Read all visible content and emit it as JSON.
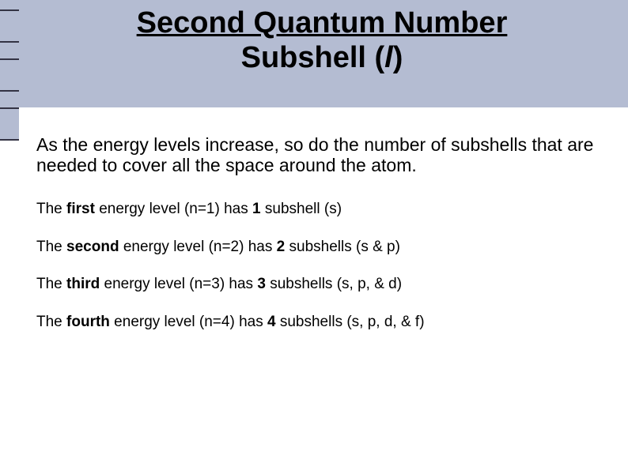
{
  "colors": {
    "header_bg": "#b4bcd2",
    "tick_border": "#333344",
    "body_bg": "#ffffff",
    "text": "#000000"
  },
  "title": {
    "line1": "Second Quantum Number",
    "line2_pre": "Subshell (",
    "line2_italic": "l",
    "line2_post": ")"
  },
  "intro": "As the energy levels increase, so do the number of subshells that are needed to cover all the space around the atom.",
  "levels": [
    {
      "pre": "The ",
      "ord": "first",
      "mid1": " energy level (n=1) has ",
      "count": "1",
      "mid2": " subshell (s)"
    },
    {
      "pre": "The ",
      "ord": "second",
      "mid1": " energy level (n=2) has ",
      "count": "2",
      "mid2": " subshells (s & p)"
    },
    {
      "pre": "The ",
      "ord": "third",
      "mid1": " energy level (n=3) has ",
      "count": "3",
      "mid2": " subshells (s, p, & d)"
    },
    {
      "pre": "The ",
      "ord": "fourth",
      "mid1": " energy level (n=4) has ",
      "count": "4",
      "mid2": " subshells (s, p, d, & f)"
    }
  ]
}
